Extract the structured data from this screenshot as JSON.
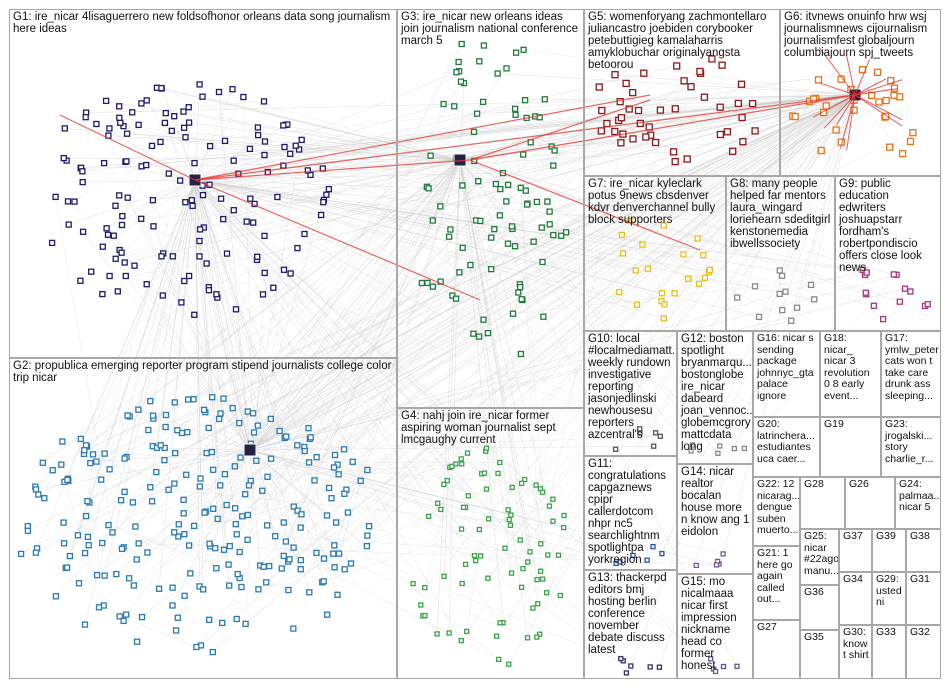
{
  "groups": [
    {
      "id": "g1",
      "label": "G1: ire_nicar 4lisaguerrero new foldsofhonor orleans data song journalism here ideas"
    },
    {
      "id": "g2",
      "label": "G2: propublica emerging reporter program stipend journalists college color trip nicar"
    },
    {
      "id": "g3",
      "label": "G3: ire_nicar new orleans ideas join journalism national conference march 5"
    },
    {
      "id": "g4",
      "label": "G4: nahj join ire_nicar former aspiring woman journalist sept lmcgaughy current"
    },
    {
      "id": "g5",
      "label": "G5: womenforyang zachmontellaro juliancastro joebiden corybooker petebuttigieg kamalaharris amyklobuchar originalyangsta betoorou"
    },
    {
      "id": "g6",
      "label": "G6: itvnews onuinfo hrw wsj journalismnews cijournalism journalismfest globaljourn columbiajourn spj_tweets"
    },
    {
      "id": "g7",
      "label": "G7: ire_nicar kyleclark potus 9news cbsdenver kdvr denverchannel bully block supporters"
    },
    {
      "id": "g8",
      "label": "G8: many people helped far mentors laura_wingard loriehearn sdeditgirl kenstonemedia ibwellssociety"
    },
    {
      "id": "g9",
      "label": "G9: public education edwriters joshuapstarr fordham's robertpondiscio offers close look news"
    },
    {
      "id": "g10",
      "label": "G10: local #localmediamatt... weekly rundown investigative reporting jasonjedlinski newhousesu reporters azcentral's"
    },
    {
      "id": "g11",
      "label": "G11: congratulations capgaznews cpipr callerdotcom nhpr nc5 searchlightnm spotlightpa yorkregion"
    },
    {
      "id": "g12",
      "label": "G12: boston spotlight bryanmarqu... bostonglobe ire_nicar dabeard joan_vennoc... globemcgrory mattcdata long"
    },
    {
      "id": "g13",
      "label": "G13: thackerpd editors bmj hosting berlin conference november debate discuss latest"
    },
    {
      "id": "g14",
      "label": "G14: nicar realtor bocalan house more n know ang 1 eidolon"
    },
    {
      "id": "g15",
      "label": "G15: mo nicalmaaa nicar first impression nickname head co former honest"
    },
    {
      "id": "g16",
      "label": "G16: nicar s sending package johnnyc_gta palace ignore"
    },
    {
      "id": "g17",
      "label": "G17: ymlw_peter cats won t take care drunk ass sleeping..."
    },
    {
      "id": "g18",
      "label": "G18: nicar_ nicar 3 revolution 0 8 early event..."
    },
    {
      "id": "g19",
      "label": "G19"
    },
    {
      "id": "g20",
      "label": "G20: latrinchera... estudiantes uca caer..."
    },
    {
      "id": "g21",
      "label": "G21: 1 here go again called out..."
    },
    {
      "id": "g22",
      "label": "G22: 12 nicarag... dengue suben muerto..."
    },
    {
      "id": "g23",
      "label": "G23: jrogalski... story charlie_r..."
    },
    {
      "id": "g24",
      "label": "G24: palmaa... nicar 5"
    },
    {
      "id": "g25",
      "label": "G25: nicar #22ago manu..."
    },
    {
      "id": "g26",
      "label": "G26"
    },
    {
      "id": "g27",
      "label": "G27"
    },
    {
      "id": "g28",
      "label": "G28"
    },
    {
      "id": "g29",
      "label": "G29: usted ni"
    },
    {
      "id": "g30",
      "label": "G30: know t shirt"
    },
    {
      "id": "g31",
      "label": "G31"
    },
    {
      "id": "g32",
      "label": "G32"
    },
    {
      "id": "g33",
      "label": "G33"
    },
    {
      "id": "g34",
      "label": "G34"
    },
    {
      "id": "g35",
      "label": "G35"
    },
    {
      "id": "g36",
      "label": "G36"
    },
    {
      "id": "g37",
      "label": "G37"
    },
    {
      "id": "g38",
      "label": "G38"
    },
    {
      "id": "g39",
      "label": "G39"
    }
  ],
  "colors": {
    "g1": "#1c1c6e",
    "g2": "#2a7ab8",
    "g3": "#1f7a3c",
    "g4": "#3aa34a",
    "g5": "#8b1a1a",
    "g6": "#e8731a",
    "g7": "#e8c01a",
    "g8": "#8a8a8a",
    "g9": "#b0327a",
    "g10": "#555555",
    "g11": "#2255aa",
    "g12": "#888888",
    "g13": "#333366",
    "g14": "#7a5a9a",
    "g15": "#5a5a9a",
    "edge": "#c8c8c8",
    "highlight": "#e8322a"
  }
}
